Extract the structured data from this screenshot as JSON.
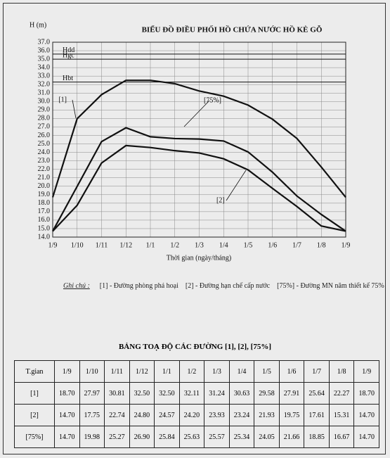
{
  "chart_data": {
    "type": "line",
    "title": "BIỂU ĐỒ ĐIỀU PHỐI HỒ CHỨA NƯỚC HỒ KẺ GỖ",
    "y_label": "H (m)",
    "x_label": "Thời gian (ngày/tháng)",
    "categories": [
      "1/9",
      "1/10",
      "1/11",
      "1/12",
      "1/1",
      "1/2",
      "1/3",
      "1/4",
      "1/5",
      "1/6",
      "1/7",
      "1/8",
      "1/9"
    ],
    "ylim": [
      14.0,
      37.0
    ],
    "yticks": [
      {
        "value": 14,
        "label": "14.0"
      },
      {
        "value": 15,
        "label": "15.0"
      },
      {
        "value": 16,
        "label": "16.0"
      },
      {
        "value": 17,
        "label": "17.0"
      },
      {
        "value": 18,
        "label": "18.0"
      },
      {
        "value": 19,
        "label": "19.0"
      },
      {
        "value": 20,
        "label": "20.0"
      },
      {
        "value": 21,
        "label": "21.0"
      },
      {
        "value": 22,
        "label": "22.0"
      },
      {
        "value": 23,
        "label": "23.0"
      },
      {
        "value": 24,
        "label": "24.0"
      },
      {
        "value": 25,
        "label": "25.0"
      },
      {
        "value": 26,
        "label": "26.0"
      },
      {
        "value": 27,
        "label": "27.0"
      },
      {
        "value": 28,
        "label": "28.0"
      },
      {
        "value": 29,
        "label": "29.0"
      },
      {
        "value": 30,
        "label": "30.0"
      },
      {
        "value": 31,
        "label": "31.0"
      },
      {
        "value": 32,
        "label": "32.0"
      },
      {
        "value": 33,
        "label": "33.0"
      },
      {
        "value": 34,
        "label": "34.0"
      },
      {
        "value": 35,
        "label": "35.0"
      },
      {
        "value": 36,
        "label": "36.0"
      },
      {
        "value": 37,
        "label": "37.0"
      }
    ],
    "grid": true,
    "reference_lines": [
      {
        "label": "Hdd",
        "value": 35.6
      },
      {
        "label": "Hgc",
        "value": 35.0
      },
      {
        "label": "Hbt",
        "value": 32.3
      }
    ],
    "series": [
      {
        "name": "[1]",
        "color": "#111",
        "values": [
          18.7,
          27.97,
          30.81,
          32.5,
          32.5,
          32.11,
          31.24,
          30.63,
          29.58,
          27.91,
          25.64,
          22.27,
          18.7
        ],
        "value_labels": [
          "18.70",
          "27.97",
          "30.81",
          "32.50",
          "32.50",
          "32.11",
          "31.24",
          "30.63",
          "29.58",
          "27.91",
          "25.64",
          "22.27",
          "18.70"
        ]
      },
      {
        "name": "[2]",
        "color": "#111",
        "values": [
          14.7,
          17.75,
          22.74,
          24.8,
          24.57,
          24.2,
          23.93,
          23.24,
          21.93,
          19.75,
          17.61,
          15.31,
          14.7
        ],
        "value_labels": [
          "14.70",
          "17.75",
          "22.74",
          "24.80",
          "24.57",
          "24.20",
          "23.93",
          "23.24",
          "21.93",
          "19.75",
          "17.61",
          "15.31",
          "14.70"
        ]
      },
      {
        "name": "[75%]",
        "color": "#111",
        "values": [
          14.7,
          19.98,
          25.27,
          26.9,
          25.84,
          25.63,
          25.57,
          25.34,
          24.05,
          21.66,
          18.85,
          16.67,
          14.7
        ],
        "value_labels": [
          "14.70",
          "19.98",
          "25.27",
          "26.90",
          "25.84",
          "25.63",
          "25.57",
          "25.34",
          "24.05",
          "21.66",
          "18.85",
          "16.67",
          "14.70"
        ]
      }
    ]
  },
  "note": {
    "label": "Ghi chú :",
    "items": [
      "[1] - Đường phòng phá hoại",
      "[2] - Đường hạn chế cấp nước",
      "[75%] - Đường MN năm thiết kế 75%"
    ]
  },
  "table": {
    "title": "BẢNG TOẠ ĐỘ CÁC ĐƯỜNG  [1], [2], [75%]",
    "header": "T.gian"
  }
}
